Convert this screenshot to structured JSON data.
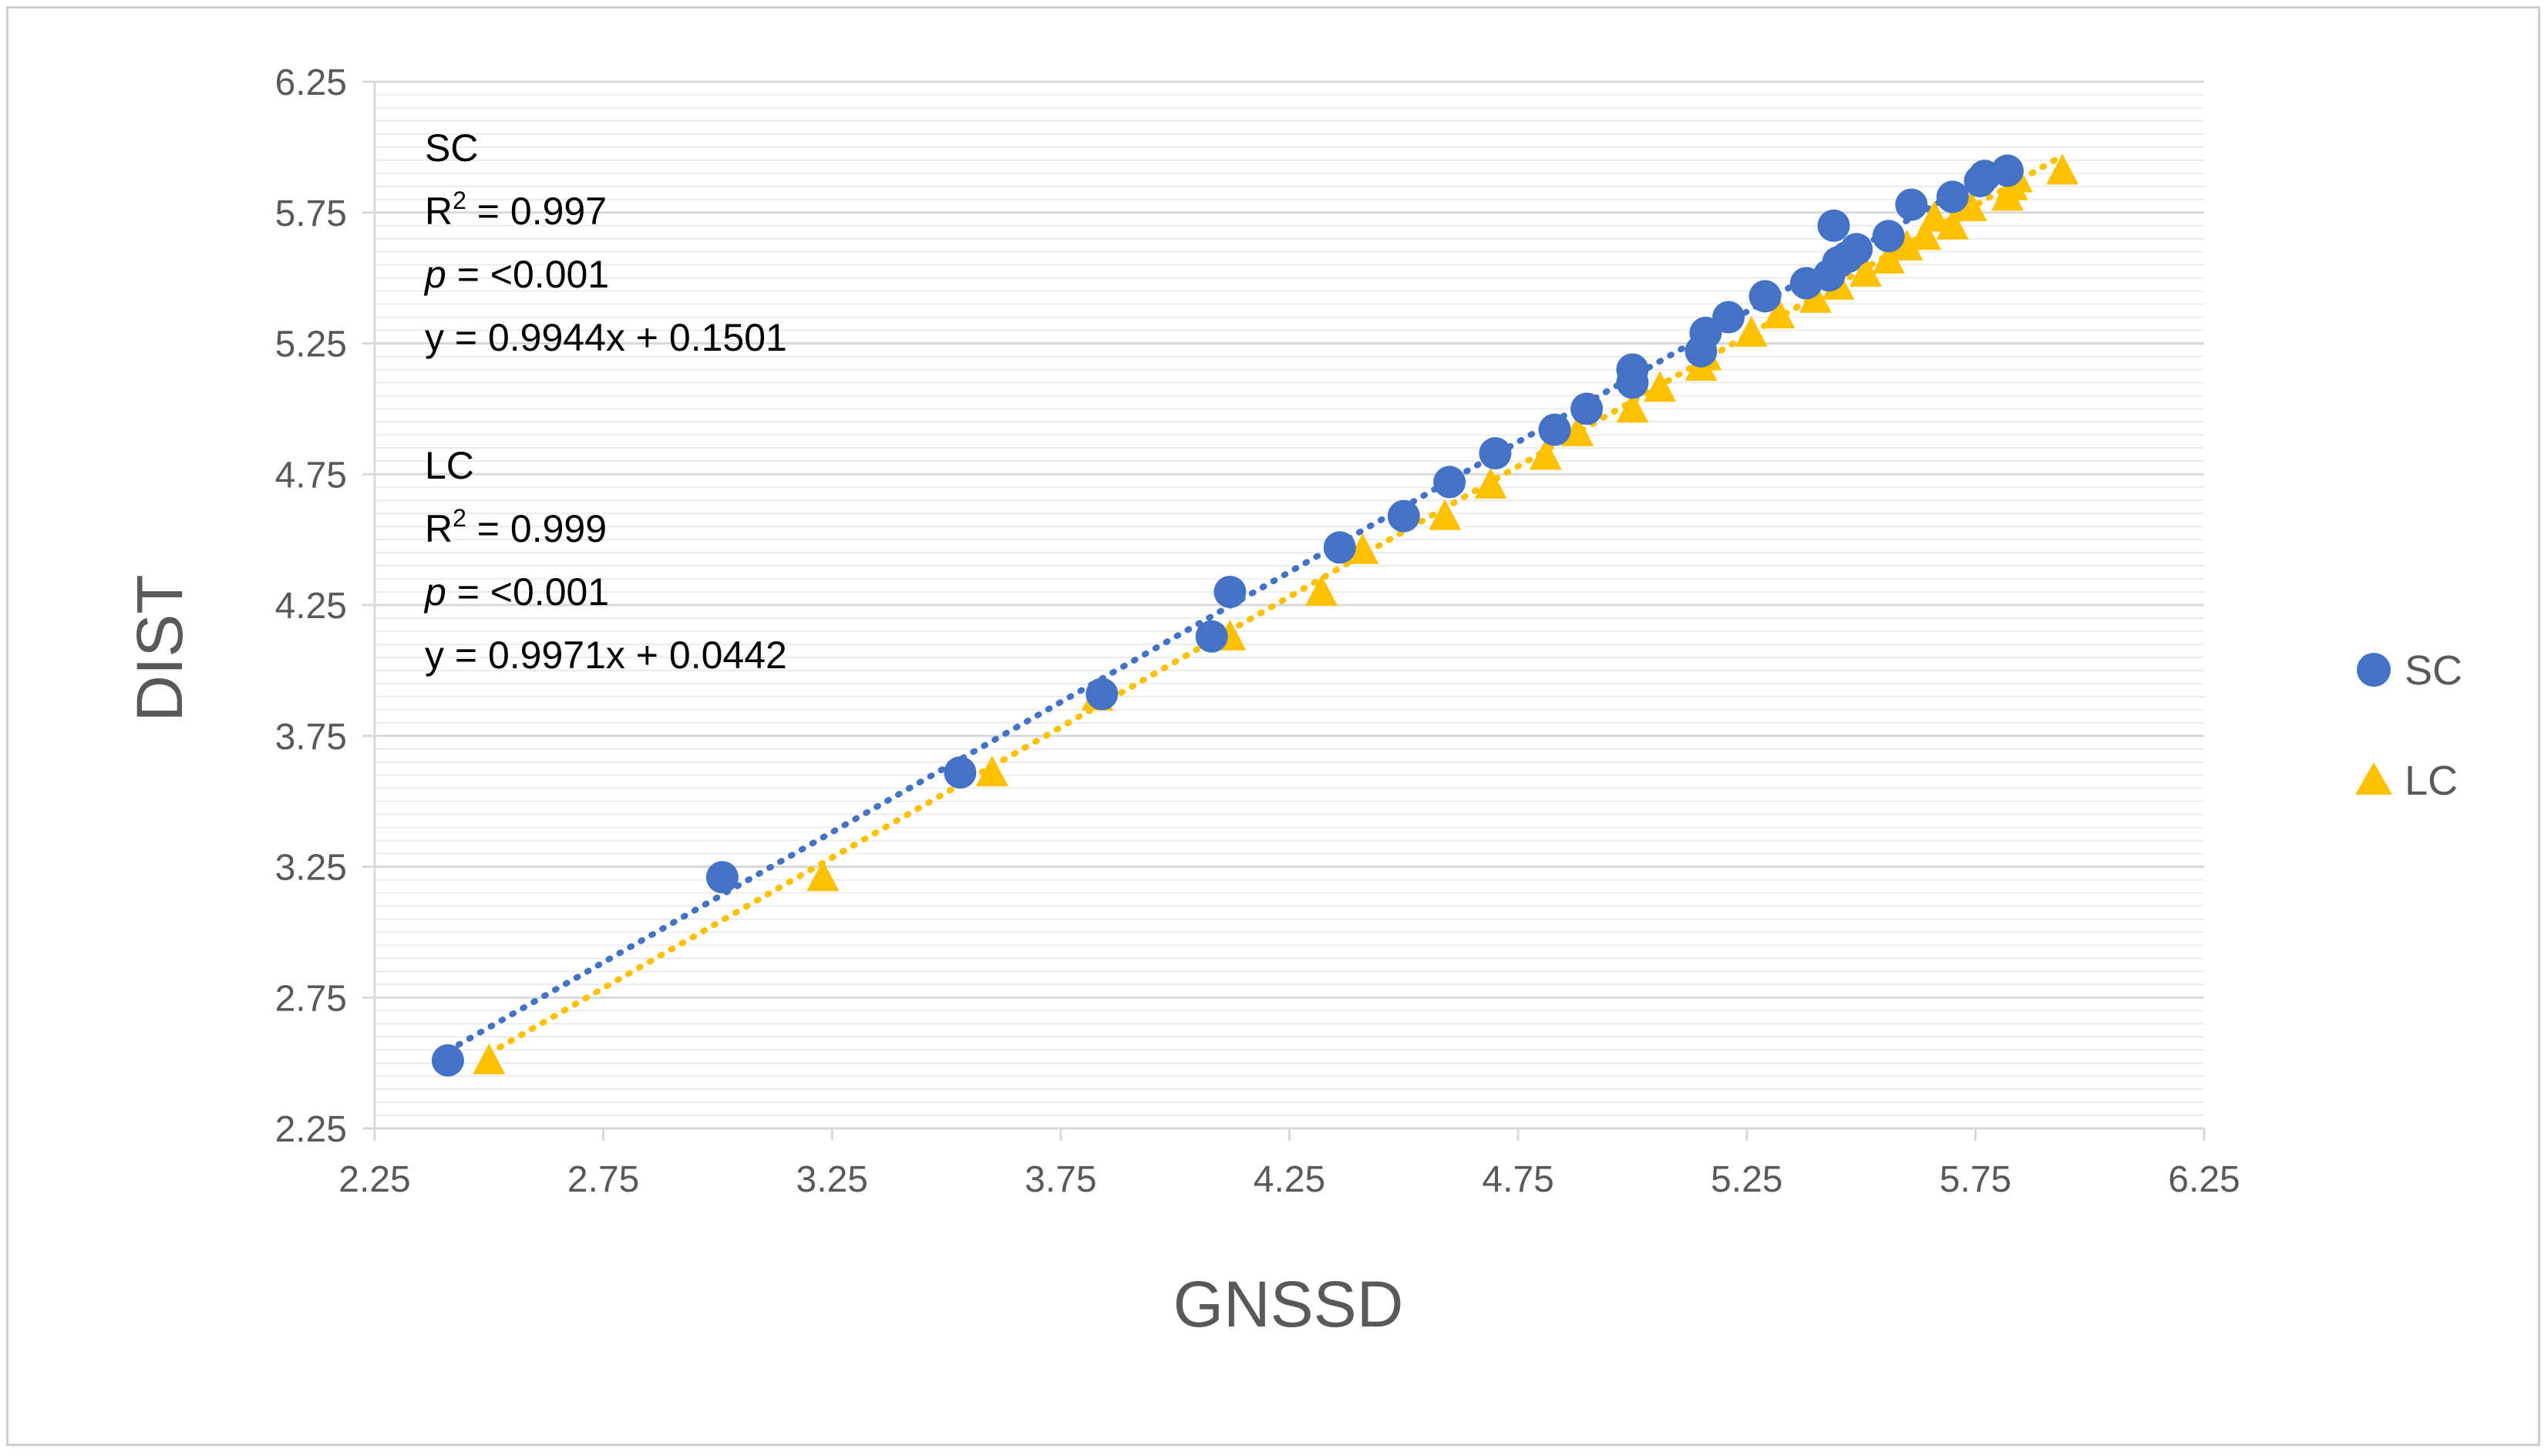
{
  "chart_data": {
    "type": "scatter",
    "title": "",
    "xlabel": "GNSSD",
    "ylabel": "DIST",
    "xlim": [
      2.25,
      6.25
    ],
    "ylim": [
      2.25,
      6.25
    ],
    "xticks": [
      "2.25",
      "2.75",
      "3.25",
      "3.75",
      "4.25",
      "4.75",
      "5.25",
      "5.75",
      "6.25"
    ],
    "yticks": [
      "2.25",
      "2.75",
      "3.25",
      "3.75",
      "4.25",
      "4.75",
      "5.25",
      "5.75",
      "6.25"
    ],
    "grid": true,
    "legend_position": "right",
    "series": [
      {
        "name": "SC",
        "marker": "circle",
        "color": "#4472C4",
        "trendline": {
          "type": "linear",
          "slope": 0.9944,
          "intercept": 0.1501,
          "x_range": [
            2.41,
            5.83
          ]
        },
        "points": [
          [
            2.41,
            2.51
          ],
          [
            3.01,
            3.21
          ],
          [
            3.53,
            3.61
          ],
          [
            3.84,
            3.91
          ],
          [
            4.08,
            4.13
          ],
          [
            4.12,
            4.3
          ],
          [
            4.36,
            4.47
          ],
          [
            4.5,
            4.59
          ],
          [
            4.6,
            4.72
          ],
          [
            4.7,
            4.83
          ],
          [
            4.83,
            4.92
          ],
          [
            4.9,
            5.0
          ],
          [
            5.0,
            5.1
          ],
          [
            5.0,
            5.15
          ],
          [
            5.15,
            5.22
          ],
          [
            5.16,
            5.29
          ],
          [
            5.21,
            5.35
          ],
          [
            5.29,
            5.43
          ],
          [
            5.38,
            5.48
          ],
          [
            5.43,
            5.51
          ],
          [
            5.44,
            5.7
          ],
          [
            5.45,
            5.56
          ],
          [
            5.47,
            5.58
          ],
          [
            5.49,
            5.61
          ],
          [
            5.56,
            5.66
          ],
          [
            5.61,
            5.78
          ],
          [
            5.7,
            5.81
          ],
          [
            5.76,
            5.87
          ],
          [
            5.77,
            5.89
          ],
          [
            5.82,
            5.91
          ]
        ]
      },
      {
        "name": "LC",
        "marker": "triangle",
        "color": "#FFC000",
        "trendline": {
          "type": "linear",
          "slope": 0.9971,
          "intercept": 0.0442,
          "x_range": [
            2.5,
            5.94
          ]
        },
        "points": [
          [
            2.5,
            2.51
          ],
          [
            3.23,
            3.21
          ],
          [
            3.6,
            3.61
          ],
          [
            3.83,
            3.9
          ],
          [
            4.12,
            4.13
          ],
          [
            4.32,
            4.3
          ],
          [
            4.41,
            4.46
          ],
          [
            4.59,
            4.59
          ],
          [
            4.69,
            4.71
          ],
          [
            4.81,
            4.82
          ],
          [
            4.88,
            4.91
          ],
          [
            5.0,
            5.0
          ],
          [
            5.06,
            5.08
          ],
          [
            5.15,
            5.16
          ],
          [
            5.16,
            5.2
          ],
          [
            5.26,
            5.29
          ],
          [
            5.32,
            5.36
          ],
          [
            5.4,
            5.42
          ],
          [
            5.45,
            5.47
          ],
          [
            5.51,
            5.52
          ],
          [
            5.56,
            5.57
          ],
          [
            5.6,
            5.62
          ],
          [
            5.64,
            5.66
          ],
          [
            5.66,
            5.73
          ],
          [
            5.7,
            5.7
          ],
          [
            5.74,
            5.77
          ],
          [
            5.82,
            5.81
          ],
          [
            5.83,
            5.85
          ],
          [
            5.84,
            5.88
          ],
          [
            5.94,
            5.91
          ]
        ]
      }
    ],
    "annotations": [
      {
        "series": "SC",
        "r2_label": "R",
        "r2_sup": "2",
        "r2_value": " = 0.997",
        "p_label": "p",
        "p_value": " = <0.001",
        "equation": "y = 0.9944x + 0.1501"
      },
      {
        "series": "LC",
        "r2_label": "R",
        "r2_sup": "2",
        "r2_value": " = 0.999",
        "p_label": "p",
        "p_value": " = <0.001",
        "equation": "y = 0.9971x + 0.0442"
      }
    ]
  }
}
